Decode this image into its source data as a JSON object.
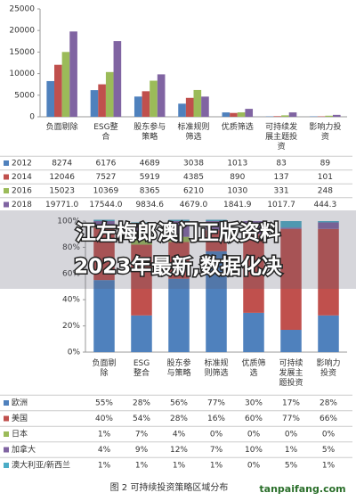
{
  "chart_data": [
    {
      "type": "bar",
      "categories": [
        "负面剔除",
        "ESG整合",
        "股东参与策略",
        "标准规则筛选",
        "优质筛选",
        "可持续发展主题投资",
        "影响力投资"
      ],
      "series": [
        {
          "name": "2012",
          "color": "#4f81bd",
          "values": [
            8274,
            6176,
            4689,
            3038,
            1013,
            83,
            89
          ]
        },
        {
          "name": "2014",
          "color": "#c0504d",
          "values": [
            12046,
            7527,
            5919,
            4385,
            890,
            137,
            101
          ]
        },
        {
          "name": "2016",
          "color": "#9bbb59",
          "values": [
            15023,
            10369,
            8365,
            6210,
            1030,
            331,
            248
          ]
        },
        {
          "name": "2018",
          "color": "#8064a2",
          "values": [
            19771,
            17544,
            9834.6,
            4679,
            1841.9,
            1017.7,
            444.3
          ],
          "value_labels": [
            "19771.0",
            "17544.0",
            "9834.6",
            "4679.0",
            "1841.9",
            "1017.7",
            "444.3"
          ]
        }
      ],
      "ylim": [
        0,
        25000
      ],
      "yticks": [
        0,
        5000,
        10000,
        15000,
        20000,
        25000
      ]
    },
    {
      "type": "stacked_bar",
      "categories": [
        "负面剔除",
        "ESG整合",
        "股东参与策略",
        "标准规则筛选",
        "优质筛选",
        "可持续发展主题投资",
        "影响力投资"
      ],
      "series": [
        {
          "name": "欧洲",
          "color": "#4f81bd",
          "values": [
            55,
            28,
            56,
            77,
            30,
            17,
            28
          ],
          "value_labels": [
            "55%",
            "28%",
            "56%",
            "77%",
            "30%",
            "17%",
            "28%"
          ]
        },
        {
          "name": "美国",
          "color": "#c0504d",
          "values": [
            40,
            54,
            28,
            16,
            60,
            77,
            66
          ],
          "value_labels": [
            "40%",
            "54%",
            "28%",
            "16%",
            "60%",
            "77%",
            "66%"
          ]
        },
        {
          "name": "日本",
          "color": "#9bbb59",
          "values": [
            1,
            7,
            4,
            0,
            0,
            0,
            0
          ],
          "value_labels": [
            "1%",
            "7%",
            "4%",
            "0%",
            "0%",
            "0%",
            "0%"
          ]
        },
        {
          "name": "加拿大",
          "color": "#8064a2",
          "values": [
            4,
            9,
            12,
            7,
            10,
            1,
            5
          ],
          "value_labels": [
            "4%",
            "9%",
            "12%",
            "7%",
            "10%",
            "1%",
            "5%"
          ]
        },
        {
          "name": "澳大利亚/新西兰",
          "color": "#4bacc6",
          "values": [
            1,
            1,
            1,
            1,
            0,
            5,
            1
          ],
          "value_labels": [
            "1%",
            "1%",
            "1%",
            "1%",
            "0%",
            "5%",
            "1%"
          ]
        }
      ],
      "ylim": [
        0,
        100
      ],
      "yticks": [
        {
          "value": 0,
          "label": "0%"
        },
        {
          "value": 20,
          "label": "20%"
        },
        {
          "value": 40,
          "label": "40%"
        },
        {
          "value": 60,
          "label": "60%"
        },
        {
          "value": 80,
          "label": "80%"
        },
        {
          "value": 100,
          "label": "100%"
        }
      ],
      "caption": "图 2 可持续投资策略区域分布"
    }
  ],
  "banner": {
    "line1": "江左梅郎澳门正版资料",
    "line2": "2023年最新,数据化决"
  },
  "watermark": "tanpaifang.com"
}
